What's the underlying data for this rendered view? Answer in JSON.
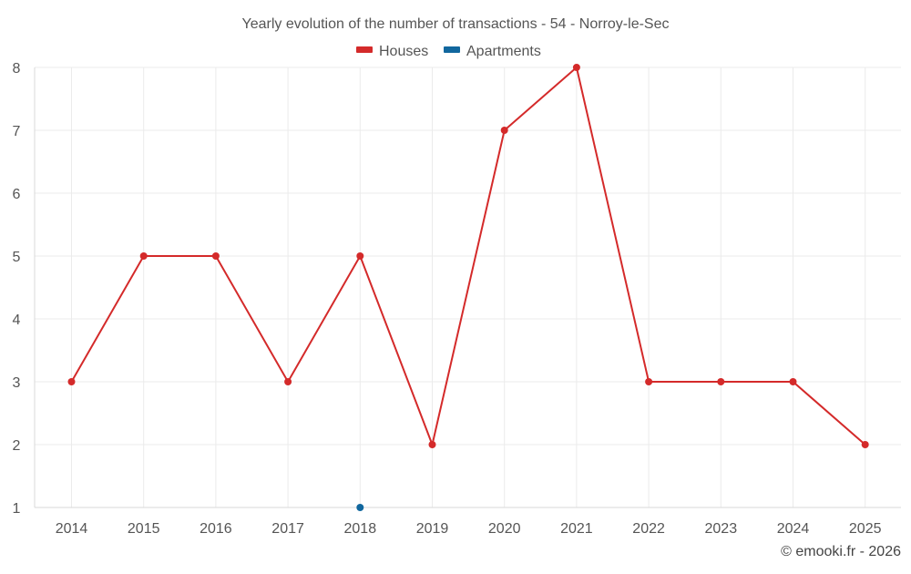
{
  "chart_data": {
    "type": "line",
    "title": "Yearly evolution of the number of transactions - 54 - Norroy-le-Sec",
    "categories": [
      "2014",
      "2015",
      "2016",
      "2017",
      "2018",
      "2019",
      "2020",
      "2021",
      "2022",
      "2023",
      "2024",
      "2025"
    ],
    "y_ticks": [
      "1",
      "2",
      "3",
      "4",
      "5",
      "6",
      "7",
      "8"
    ],
    "ylim": [
      1,
      8
    ],
    "grid": true,
    "legend_position": "top-center",
    "series": [
      {
        "name": "Houses",
        "color": "#d42a2a",
        "values": [
          3,
          5,
          5,
          3,
          5,
          2,
          7,
          8,
          3,
          3,
          3,
          2
        ]
      },
      {
        "name": "Apartments",
        "color": "#11679e",
        "values": [
          null,
          null,
          null,
          null,
          1,
          null,
          null,
          null,
          null,
          null,
          null,
          null
        ]
      }
    ]
  },
  "credit": "© emooki.fr - 2026"
}
